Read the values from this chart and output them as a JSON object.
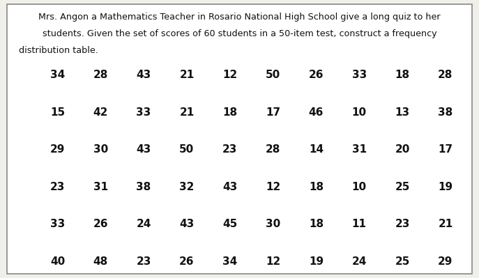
{
  "title_line1": "Mrs. Angon a Mathematics Teacher in Rosario National High School give a long quiz to her",
  "title_line2": "students. Given the set of scores of 60 students in a 50-item test, construct a frequency",
  "title_line3": "distribution table.",
  "rows": [
    [
      34,
      28,
      43,
      21,
      12,
      50,
      26,
      33,
      18,
      28
    ],
    [
      15,
      42,
      33,
      21,
      18,
      17,
      46,
      10,
      13,
      38
    ],
    [
      29,
      30,
      43,
      50,
      23,
      28,
      14,
      31,
      20,
      17
    ],
    [
      23,
      31,
      38,
      32,
      43,
      12,
      18,
      10,
      25,
      19
    ],
    [
      33,
      26,
      24,
      43,
      45,
      30,
      18,
      11,
      23,
      21
    ],
    [
      40,
      48,
      23,
      26,
      34,
      12,
      19,
      24,
      25,
      29
    ]
  ],
  "bg_color": "#f0efea",
  "border_color": "#888888",
  "text_color": "#111111",
  "title_fontsize": 9.2,
  "data_fontsize": 11.0,
  "fig_width": 6.87,
  "fig_height": 3.99,
  "dpi": 100
}
